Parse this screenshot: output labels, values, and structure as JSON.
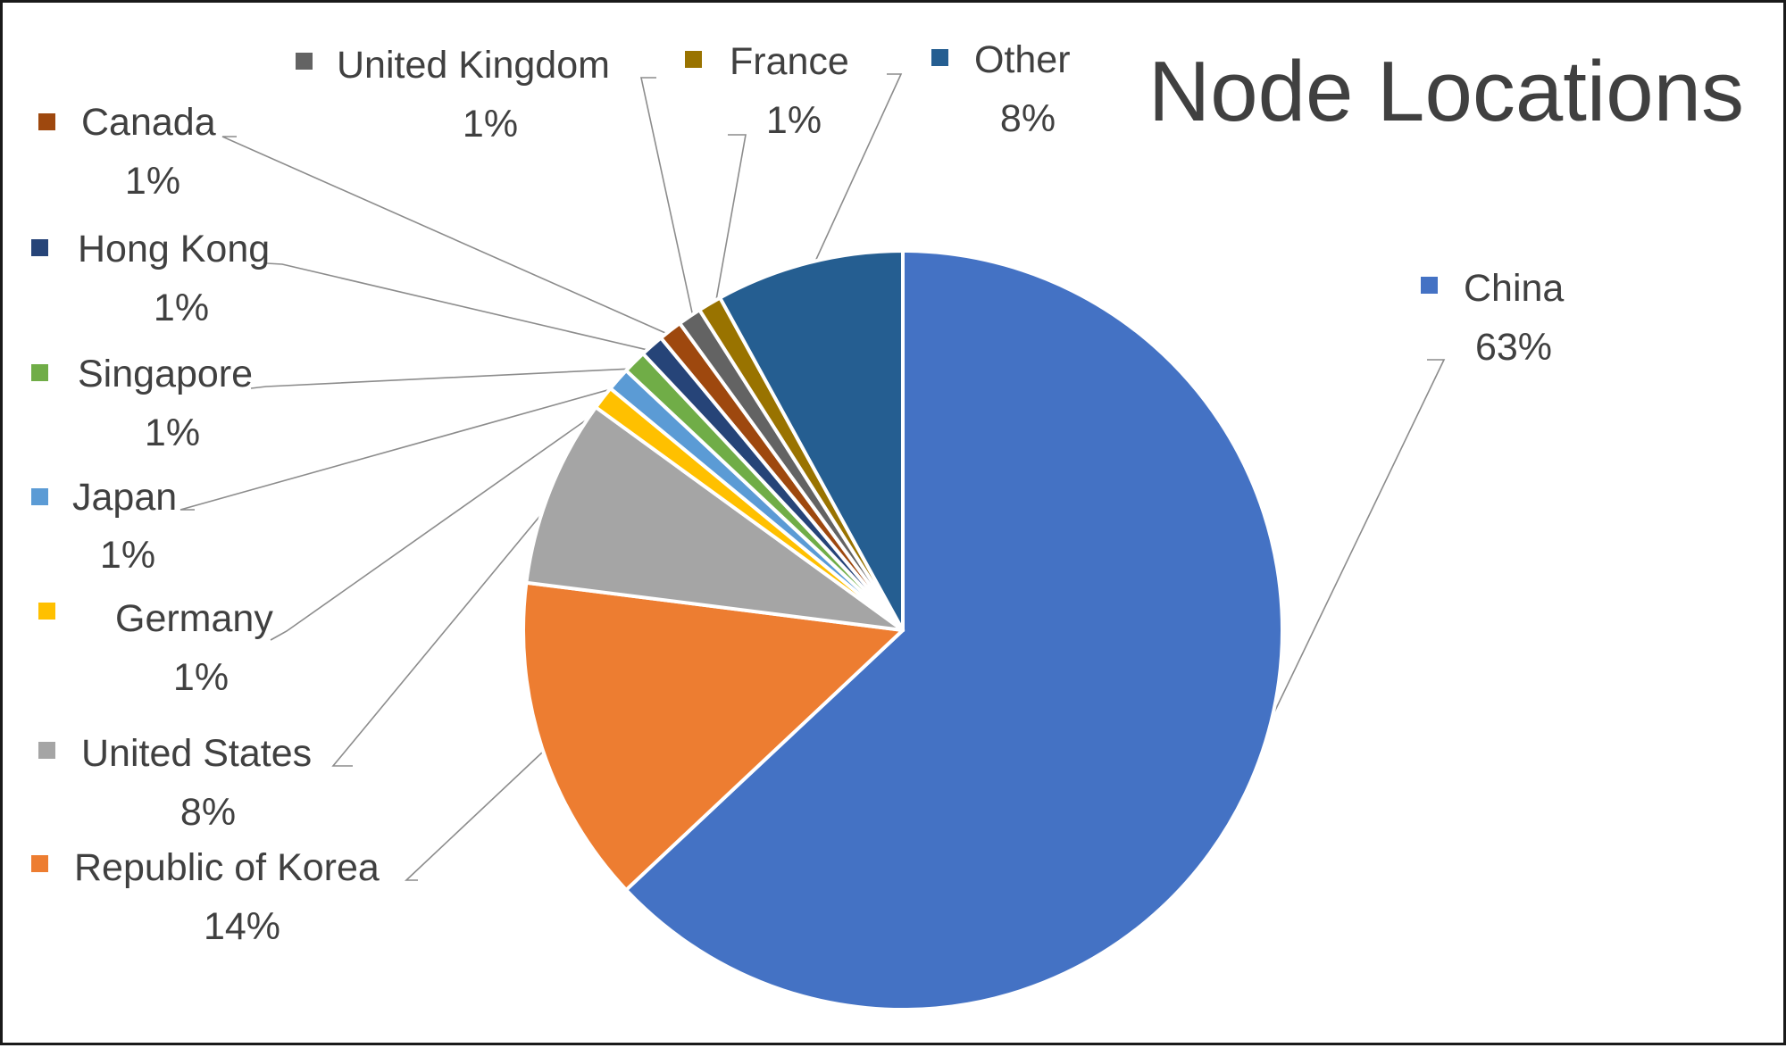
{
  "chart_data": {
    "type": "pie",
    "title": "Node Locations",
    "slices": [
      {
        "label": "China",
        "value": 63,
        "pct_label": "63%",
        "color": "#4472C4"
      },
      {
        "label": "Republic of Korea",
        "value": 14,
        "pct_label": "14%",
        "color": "#ED7D31"
      },
      {
        "label": "United States",
        "value": 8,
        "pct_label": "8%",
        "color": "#A5A5A5"
      },
      {
        "label": "Germany",
        "value": 1,
        "pct_label": "1%",
        "color": "#FFC000"
      },
      {
        "label": "Japan",
        "value": 1,
        "pct_label": "1%",
        "color": "#5B9BD5"
      },
      {
        "label": "Singapore",
        "value": 1,
        "pct_label": "1%",
        "color": "#70AD47"
      },
      {
        "label": "Hong Kong",
        "value": 1,
        "pct_label": "1%",
        "color": "#264478"
      },
      {
        "label": "Canada",
        "value": 1,
        "pct_label": "1%",
        "color": "#9E480E"
      },
      {
        "label": "United Kingdom",
        "value": 1,
        "pct_label": "1%",
        "color": "#636363"
      },
      {
        "label": "France",
        "value": 1,
        "pct_label": "1%",
        "color": "#997300"
      },
      {
        "label": "Other",
        "value": 8,
        "pct_label": "8%",
        "color": "#255E91"
      }
    ]
  }
}
